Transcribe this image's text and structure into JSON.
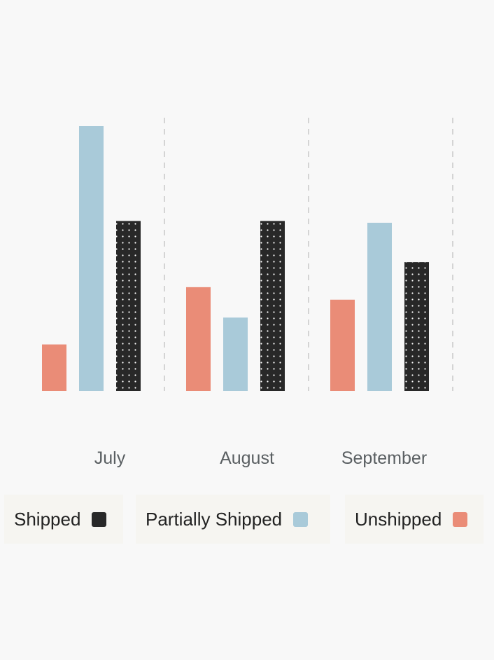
{
  "chart_data": {
    "type": "bar",
    "categories": [
      "July",
      "August",
      "September"
    ],
    "series": [
      {
        "name": "Unshipped",
        "color": "#ea8c77",
        "pattern": "solid",
        "values": [
          13,
          29,
          25.5
        ]
      },
      {
        "name": "Partially Shipped",
        "color": "#a9cad9",
        "pattern": "solid",
        "values": [
          74,
          20.5,
          47
        ]
      },
      {
        "name": "Shipped",
        "color": "#282828",
        "pattern": "white-dots",
        "values": [
          47.5,
          47.5,
          36
        ]
      }
    ],
    "ylim": [
      0,
      80
    ],
    "grid": "vertical dashed separators between categories",
    "legend": {
      "placement": "bottom",
      "order": [
        "Shipped",
        "Partially Shipped",
        "Unshipped"
      ]
    }
  }
}
